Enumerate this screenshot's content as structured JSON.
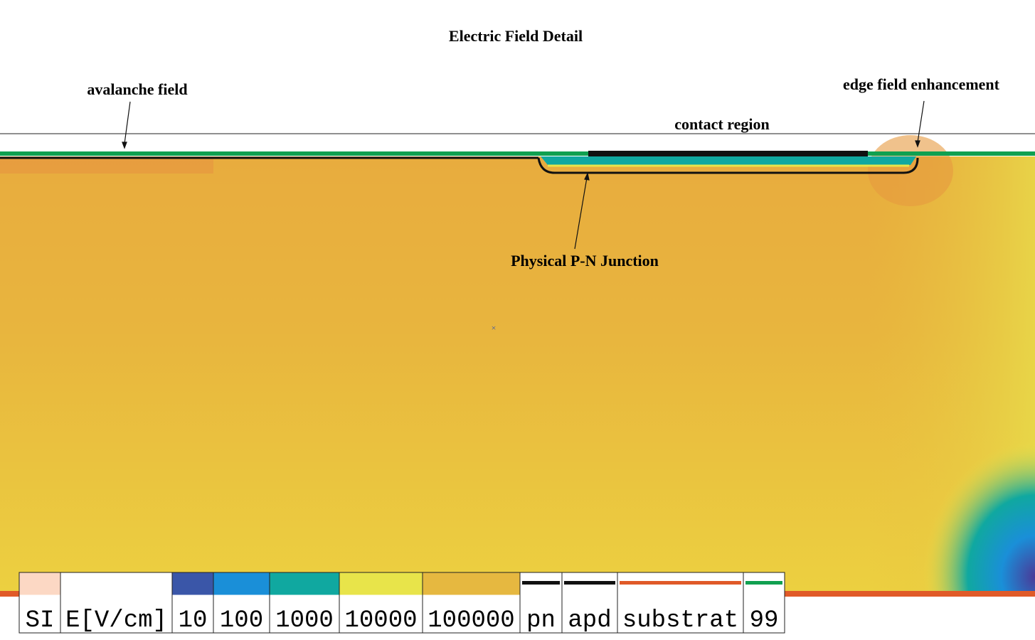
{
  "title": "Electric Field Detail",
  "annotations": {
    "avalanche": "avalanche field",
    "edge": "edge field enhancement",
    "contact": "contact region",
    "junction": "Physical P-N Junction"
  },
  "legend": [
    {
      "label": "SI",
      "swatch": "fill",
      "color": "#fcd8c4"
    },
    {
      "label": "E[V/cm]"
    },
    {
      "label": "10",
      "swatch": "fill",
      "color": "#3a56a8"
    },
    {
      "label": "100",
      "swatch": "fill",
      "color": "#1a8fd8"
    },
    {
      "label": "1000",
      "swatch": "fill",
      "color": "#10a8a0"
    },
    {
      "label": "10000",
      "swatch": "fill",
      "color": "#e8e44a"
    },
    {
      "label": "100000",
      "swatch": "fill",
      "color": "#e6b840"
    },
    {
      "label": "pn",
      "swatch": "line",
      "color": "#111111"
    },
    {
      "label": "apd",
      "swatch": "line",
      "color": "#111111"
    },
    {
      "label": "substrat",
      "swatch": "line",
      "color": "#e05a28"
    },
    {
      "label": "99",
      "swatch": "line",
      "color": "#10a050"
    }
  ]
}
